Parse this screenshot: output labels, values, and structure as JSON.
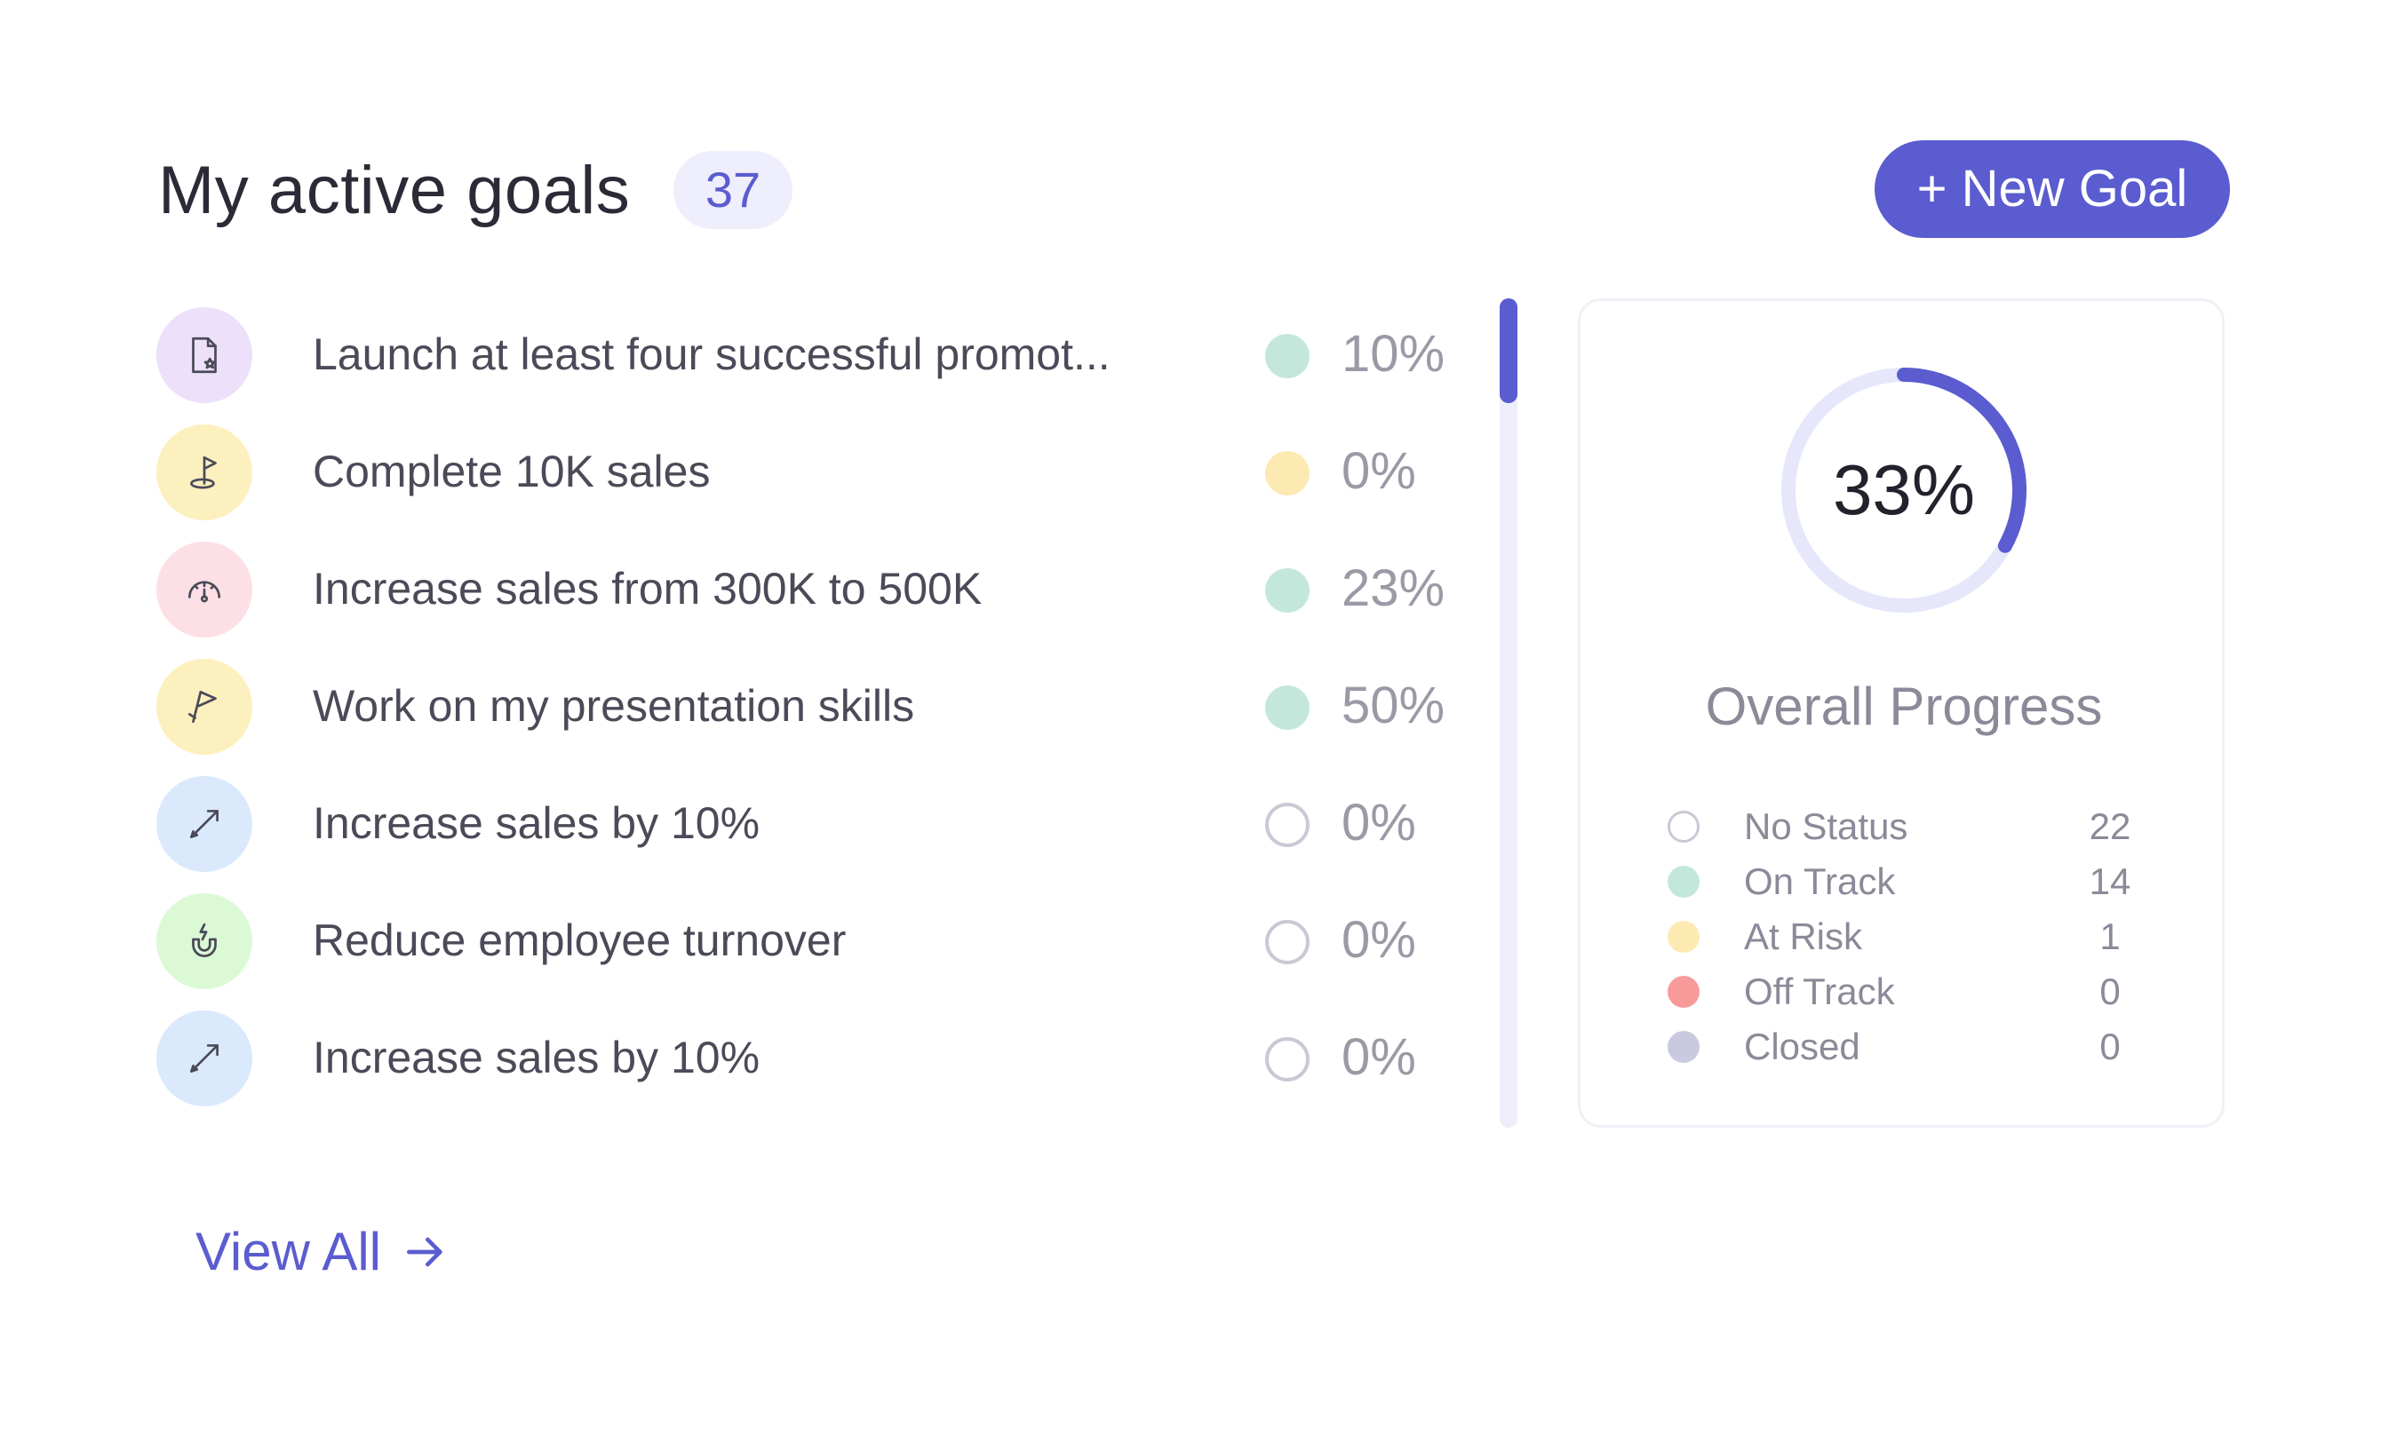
{
  "header": {
    "title": "My active goals",
    "count": "37",
    "new_goal_label": "+ New Goal"
  },
  "goals": [
    {
      "label": "Launch at least four successful promot...",
      "percent": "10%",
      "status": "on-track",
      "icon": "document-star-icon",
      "icon_bg": "#ece0fb"
    },
    {
      "label": "Complete 10K sales",
      "percent": "0%",
      "status": "at-risk",
      "icon": "flag-hole-icon",
      "icon_bg": "#fdf0bf"
    },
    {
      "label": "Increase sales from 300K to 500K",
      "percent": "23%",
      "status": "on-track",
      "icon": "gauge-icon",
      "icon_bg": "#fde0e6"
    },
    {
      "label": "Work on my presentation skills",
      "percent": "50%",
      "status": "on-track",
      "icon": "flag-icon",
      "icon_bg": "#fdf0bf"
    },
    {
      "label": "Increase sales by 10%",
      "percent": "0%",
      "status": "no-status",
      "icon": "arrow-icon",
      "icon_bg": "#dbe9fc"
    },
    {
      "label": "Reduce employee turnover",
      "percent": "0%",
      "status": "no-status",
      "icon": "magnet-icon",
      "icon_bg": "#dcf9d6"
    },
    {
      "label": "Increase sales by 10%",
      "percent": "0%",
      "status": "no-status",
      "icon": "arrow-icon",
      "icon_bg": "#dbe9fc"
    }
  ],
  "overall": {
    "percent_label": "33%",
    "percent_value": 33,
    "title": "Overall Progress"
  },
  "legend": [
    {
      "label": "No Status",
      "count": "22",
      "color": "hollow"
    },
    {
      "label": "On Track",
      "count": "14",
      "color": "#c4e7dc"
    },
    {
      "label": "At Risk",
      "count": "1",
      "color": "#fdeab3"
    },
    {
      "label": "Off Track",
      "count": "0",
      "color": "#f99a9a"
    },
    {
      "label": "Closed",
      "count": "0",
      "color": "#c9cadf"
    }
  ],
  "view_all": {
    "label": "View All"
  },
  "colors": {
    "accent": "#5a5ccf",
    "on_track": "#c4e7dc",
    "at_risk": "#fdeab3",
    "track": "#e6e7fb"
  }
}
